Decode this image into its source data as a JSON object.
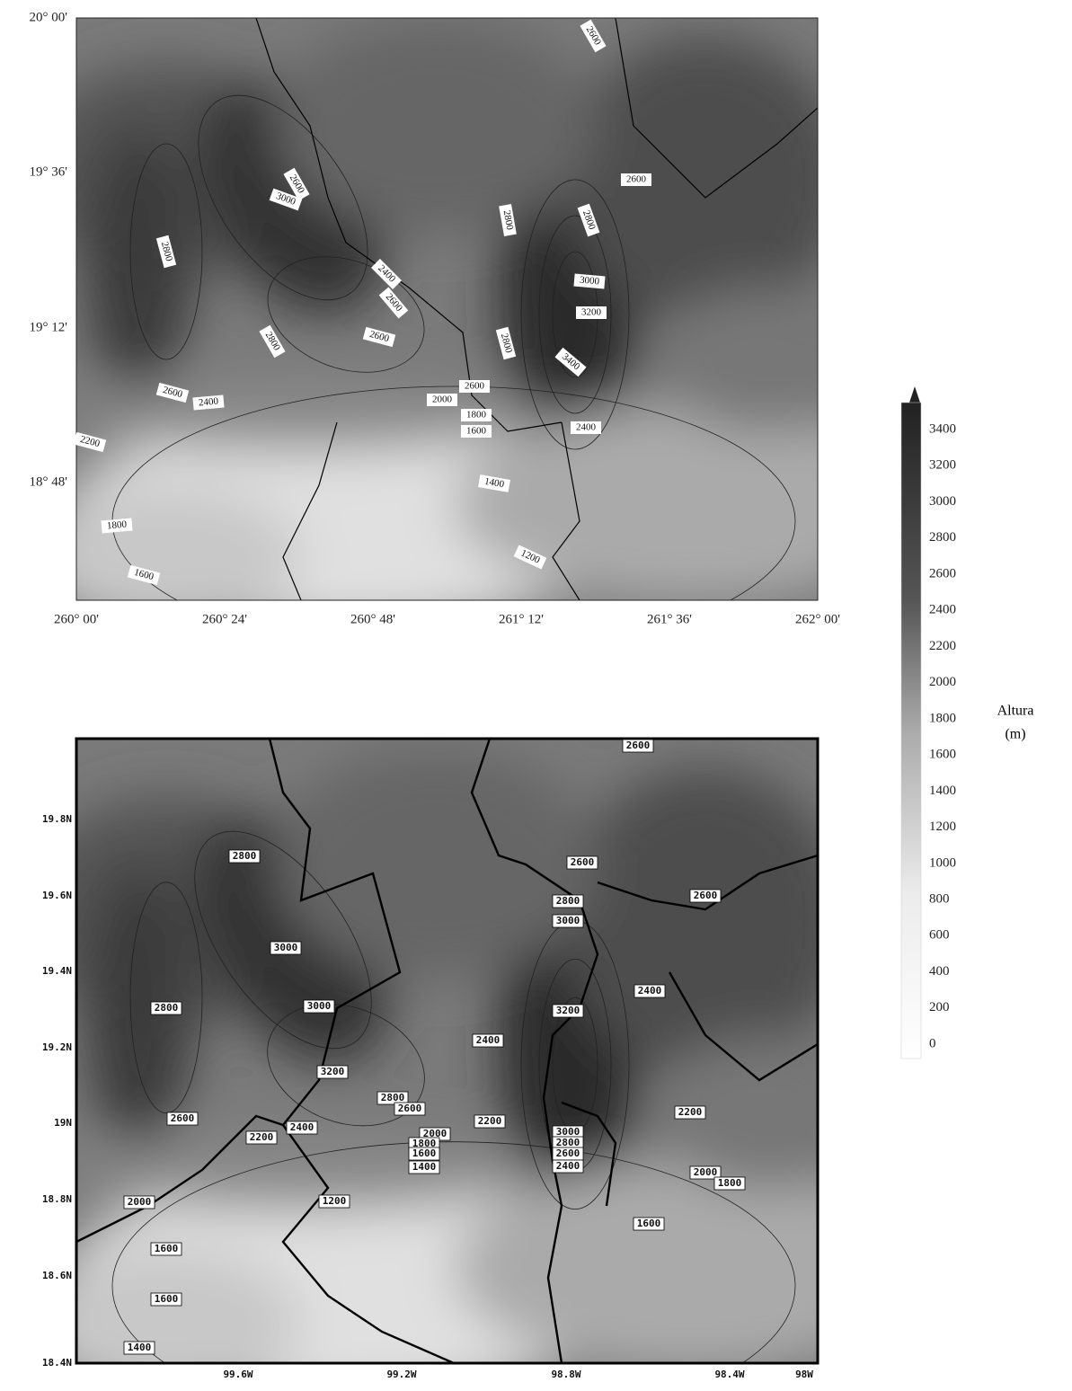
{
  "map_top": {
    "x_ticks": [
      "260° 00'",
      "260° 24'",
      "260° 48'",
      "261° 12'",
      "261° 36'",
      "262° 00'"
    ],
    "y_ticks": [
      "20° 00'",
      "19° 36'",
      "19° 12'",
      "18° 48'"
    ],
    "contour_labels": [
      2600,
      2600,
      3000,
      2800,
      2600,
      2800,
      2800,
      2400,
      2600,
      3000,
      3200,
      2800,
      2600,
      2800,
      3400,
      2600,
      2400,
      2600,
      2000,
      1800,
      1600,
      2400,
      2200,
      1400,
      1800,
      1200,
      1600
    ]
  },
  "map_bottom": {
    "x_ticks": [
      "99.6W",
      "99.2W",
      "98.8W",
      "98.4W",
      "98W"
    ],
    "y_ticks": [
      "19.8N",
      "19.6N",
      "19.4N",
      "19.2N",
      "19N",
      "18.8N",
      "18.6N",
      "18.4N"
    ],
    "contour_labels": [
      2600,
      2800,
      2600,
      2800,
      2600,
      3000,
      3000,
      2800,
      3000,
      2400,
      3200,
      2400,
      3200,
      2800,
      2600,
      2600,
      2200,
      2200,
      2400,
      2200,
      2000,
      1800,
      1600,
      1400,
      3000,
      2800,
      2600,
      2400,
      2000,
      1800,
      2000,
      1200,
      1600,
      1600,
      1600,
      1400
    ]
  },
  "colorbar": {
    "labels": [
      3400,
      3200,
      3000,
      2800,
      2600,
      2400,
      2200,
      2000,
      1800,
      1600,
      1400,
      1200,
      1000,
      800,
      600,
      400,
      200,
      0
    ],
    "title": "Altura",
    "unit": "(m)"
  }
}
